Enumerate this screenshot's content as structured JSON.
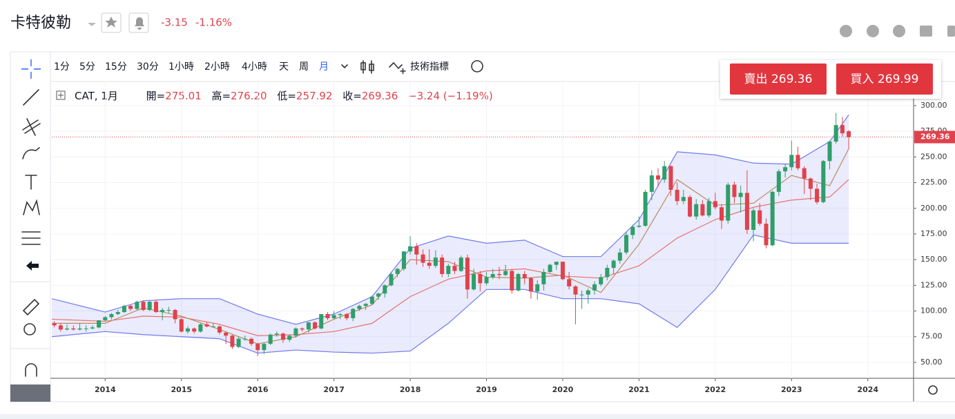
{
  "header": {
    "title": "卡特彼勒",
    "change": "-3.15",
    "change_pct": "-1.16%"
  },
  "toolbar": {
    "intervals": [
      "1分",
      "5分",
      "15分",
      "30分",
      "1小時",
      "2小時",
      "4小時",
      "天",
      "周",
      "月"
    ],
    "indicators": "技術指標"
  },
  "legend": {
    "symbol": "CAT, 1月",
    "open_label": "開=",
    "open": "275.01",
    "high_label": "高=",
    "high": "276.20",
    "low_label": "低=",
    "low": "257.92",
    "close_label": "收=",
    "close": "269.36",
    "change": "−3.24 (−1.19%)"
  },
  "trade": {
    "sell": "賣出 269.36",
    "buy": "買入 269.99"
  },
  "chart_data": {
    "type": "candlestick",
    "up_color": "#2f9e6a",
    "down_color": "#e0424c",
    "xlim": [
      2013.3,
      2024.6
    ],
    "xticks": [
      2014,
      2015,
      2016,
      2017,
      2018,
      2019,
      2020,
      2021,
      2022,
      2023,
      2024
    ],
    "ylim": [
      34.5,
      323.5
    ],
    "yticks": [
      {
        "value": 50,
        "label": "50.00"
      },
      {
        "value": 75,
        "label": "75.00"
      },
      {
        "value": 100,
        "label": "100.00"
      },
      {
        "value": 125,
        "label": "125.00"
      },
      {
        "value": 150,
        "label": "150.00"
      },
      {
        "value": 175,
        "label": "175.00"
      },
      {
        "value": 200,
        "label": "200.00"
      },
      {
        "value": 225,
        "label": "225.00"
      },
      {
        "value": 250,
        "label": "250.00"
      },
      {
        "value": 275,
        "label": "275.00"
      },
      {
        "value": 300,
        "label": "300.00"
      }
    ],
    "grid": true,
    "last_price": {
      "value": 269.36,
      "label": "269.36"
    },
    "x": [
      2013.333,
      2013.417,
      2013.5,
      2013.583,
      2013.667,
      2013.75,
      2013.833,
      2013.917,
      2014,
      2014.083,
      2014.167,
      2014.25,
      2014.333,
      2014.417,
      2014.5,
      2014.583,
      2014.667,
      2014.75,
      2014.833,
      2014.917,
      2015,
      2015.083,
      2015.167,
      2015.25,
      2015.333,
      2015.417,
      2015.5,
      2015.583,
      2015.667,
      2015.75,
      2015.833,
      2015.917,
      2016,
      2016.083,
      2016.167,
      2016.25,
      2016.333,
      2016.417,
      2016.5,
      2016.583,
      2016.667,
      2016.75,
      2016.833,
      2016.917,
      2017,
      2017.083,
      2017.167,
      2017.25,
      2017.333,
      2017.417,
      2017.5,
      2017.583,
      2017.667,
      2017.75,
      2017.833,
      2017.917,
      2018,
      2018.083,
      2018.167,
      2018.25,
      2018.333,
      2018.417,
      2018.5,
      2018.583,
      2018.667,
      2018.75,
      2018.833,
      2018.917,
      2019,
      2019.083,
      2019.167,
      2019.25,
      2019.333,
      2019.417,
      2019.5,
      2019.583,
      2019.667,
      2019.75,
      2019.833,
      2019.917,
      2020,
      2020.083,
      2020.167,
      2020.25,
      2020.333,
      2020.417,
      2020.5,
      2020.583,
      2020.667,
      2020.75,
      2020.833,
      2020.917,
      2021,
      2021.083,
      2021.167,
      2021.25,
      2021.333,
      2021.417,
      2021.5,
      2021.583,
      2021.667,
      2021.75,
      2021.833,
      2021.917,
      2022,
      2022.083,
      2022.167,
      2022.25,
      2022.333,
      2022.417,
      2022.5,
      2022.583,
      2022.667,
      2022.75,
      2022.833,
      2022.917,
      2023,
      2023.083,
      2023.167,
      2023.25,
      2023.333,
      2023.417,
      2023.5,
      2023.583,
      2023.667,
      2023.75
    ],
    "ohlc": [
      [
        88,
        90,
        84,
        86
      ],
      [
        86,
        88,
        80,
        82
      ],
      [
        82,
        87,
        81,
        83
      ],
      [
        83,
        86,
        81,
        82
      ],
      [
        82,
        88,
        81,
        83
      ],
      [
        83,
        86,
        80,
        83
      ],
      [
        83,
        86,
        82,
        84
      ],
      [
        84,
        91,
        83,
        91
      ],
      [
        91,
        95,
        90,
        94
      ],
      [
        94,
        98,
        92,
        97
      ],
      [
        97,
        101,
        96,
        99
      ],
      [
        99,
        106,
        98,
        105
      ],
      [
        105,
        106,
        100,
        102
      ],
      [
        102,
        110,
        101,
        109
      ],
      [
        109,
        110,
        100,
        101
      ],
      [
        101,
        110,
        100,
        109
      ],
      [
        109,
        111,
        98,
        99
      ],
      [
        99,
        103,
        91,
        101
      ],
      [
        101,
        104,
        98,
        101
      ],
      [
        101,
        102,
        88,
        92
      ],
      [
        92,
        93,
        79,
        80
      ],
      [
        80,
        85,
        78,
        83
      ],
      [
        83,
        84,
        78,
        80
      ],
      [
        80,
        88,
        79,
        87
      ],
      [
        87,
        89,
        84,
        85
      ],
      [
        85,
        88,
        84,
        85
      ],
      [
        85,
        86,
        77,
        79
      ],
      [
        79,
        80,
        68,
        76
      ],
      [
        76,
        77,
        63,
        65
      ],
      [
        65,
        75,
        64,
        73
      ],
      [
        73,
        76,
        71,
        73
      ],
      [
        73,
        74,
        66,
        68
      ],
      [
        68,
        69,
        56,
        62
      ],
      [
        62,
        69,
        58,
        68
      ],
      [
        68,
        78,
        67,
        77
      ],
      [
        77,
        80,
        75,
        78
      ],
      [
        78,
        79,
        69,
        72
      ],
      [
        72,
        77,
        70,
        76
      ],
      [
        76,
        84,
        74,
        83
      ],
      [
        83,
        84,
        80,
        82
      ],
      [
        82,
        89,
        79,
        89
      ],
      [
        89,
        90,
        82,
        83
      ],
      [
        83,
        97,
        82,
        97
      ],
      [
        97,
        99,
        91,
        93
      ],
      [
        93,
        100,
        92,
        96
      ],
      [
        96,
        98,
        92,
        97
      ],
      [
        97,
        98,
        91,
        93
      ],
      [
        93,
        103,
        90,
        102
      ],
      [
        102,
        106,
        100,
        105
      ],
      [
        105,
        108,
        101,
        107
      ],
      [
        107,
        115,
        106,
        114
      ],
      [
        114,
        118,
        111,
        117
      ],
      [
        117,
        126,
        113,
        125
      ],
      [
        125,
        138,
        124,
        136
      ],
      [
        136,
        142,
        133,
        141
      ],
      [
        141,
        158,
        139,
        158
      ],
      [
        158,
        173,
        155,
        163
      ],
      [
        163,
        166,
        145,
        155
      ],
      [
        155,
        160,
        143,
        147
      ],
      [
        147,
        160,
        141,
        144
      ],
      [
        144,
        159,
        142,
        152
      ],
      [
        152,
        155,
        133,
        136
      ],
      [
        136,
        146,
        133,
        144
      ],
      [
        144,
        148,
        136,
        139
      ],
      [
        139,
        154,
        138,
        152
      ],
      [
        152,
        155,
        112,
        121
      ],
      [
        121,
        141,
        120,
        136
      ],
      [
        136,
        139,
        119,
        127
      ],
      [
        127,
        138,
        125,
        133
      ],
      [
        133,
        141,
        131,
        136
      ],
      [
        136,
        143,
        131,
        135
      ],
      [
        135,
        145,
        134,
        139
      ],
      [
        139,
        141,
        117,
        120
      ],
      [
        120,
        137,
        119,
        136
      ],
      [
        136,
        139,
        126,
        132
      ],
      [
        132,
        133,
        112,
        119
      ],
      [
        119,
        130,
        111,
        126
      ],
      [
        126,
        141,
        120,
        138
      ],
      [
        138,
        146,
        137,
        145
      ],
      [
        145,
        148,
        140,
        148
      ],
      [
        148,
        148,
        130,
        131
      ],
      [
        131,
        138,
        121,
        124
      ],
      [
        124,
        125,
        87,
        116
      ],
      [
        116,
        120,
        102,
        116
      ],
      [
        116,
        122,
        107,
        120
      ],
      [
        120,
        129,
        116,
        126
      ],
      [
        126,
        136,
        124,
        133
      ],
      [
        133,
        145,
        130,
        142
      ],
      [
        142,
        150,
        136,
        149
      ],
      [
        149,
        161,
        146,
        157
      ],
      [
        157,
        177,
        155,
        174
      ],
      [
        174,
        184,
        170,
        182
      ],
      [
        182,
        192,
        181,
        183
      ],
      [
        183,
        218,
        182,
        216
      ],
      [
        216,
        237,
        208,
        232
      ],
      [
        232,
        239,
        221,
        228
      ],
      [
        228,
        246,
        225,
        241
      ],
      [
        241,
        242,
        212,
        218
      ],
      [
        218,
        225,
        203,
        207
      ],
      [
        207,
        218,
        204,
        211
      ],
      [
        211,
        213,
        191,
        192
      ],
      [
        192,
        209,
        189,
        204
      ],
      [
        204,
        208,
        192,
        193
      ],
      [
        193,
        210,
        191,
        207
      ],
      [
        207,
        215,
        199,
        201
      ],
      [
        201,
        204,
        180,
        188
      ],
      [
        188,
        225,
        185,
        223
      ],
      [
        223,
        226,
        205,
        211
      ],
      [
        211,
        222,
        196,
        215
      ],
      [
        215,
        237,
        175,
        179
      ],
      [
        179,
        200,
        168,
        198
      ],
      [
        198,
        205,
        183,
        185
      ],
      [
        185,
        190,
        161,
        164
      ],
      [
        164,
        217,
        163,
        216
      ],
      [
        216,
        238,
        212,
        236
      ],
      [
        236,
        243,
        230,
        240
      ],
      [
        240,
        266,
        237,
        252
      ],
      [
        252,
        260,
        237,
        239
      ],
      [
        239,
        241,
        214,
        229
      ],
      [
        229,
        230,
        208,
        219
      ],
      [
        219,
        224,
        204,
        206
      ],
      [
        206,
        247,
        205,
        246
      ],
      [
        246,
        266,
        238,
        265
      ],
      [
        265,
        293,
        263,
        281
      ],
      [
        281,
        289,
        270,
        273
      ],
      [
        275.01,
        276.2,
        257.92,
        269.36
      ]
    ],
    "bands": {
      "x": [
        2013.3,
        2014,
        2014.5,
        2015,
        2015.5,
        2016,
        2016.5,
        2017,
        2017.5,
        2018,
        2018.5,
        2019,
        2019.5,
        2020,
        2020.5,
        2021,
        2021.5,
        2022,
        2022.5,
        2023,
        2023.5,
        2023.75
      ],
      "upper": [
        112,
        99,
        110,
        112,
        112,
        97,
        87,
        97,
        114,
        161,
        173,
        166,
        169,
        153,
        153,
        189,
        255,
        252,
        244,
        243,
        265,
        291
      ],
      "lower": [
        75,
        80,
        77,
        75,
        73,
        59,
        62,
        60,
        59,
        61,
        88,
        121,
        121,
        112,
        112,
        107,
        84,
        121,
        174,
        166,
        166,
        166
      ],
      "middle": [
        92,
        90,
        95,
        94,
        87,
        76,
        77,
        80,
        88,
        114,
        131,
        139,
        141,
        134,
        132,
        144,
        171,
        189,
        201,
        208,
        211,
        228
      ],
      "fast": [
        88,
        88,
        103,
        95,
        82,
        68,
        75,
        92,
        106,
        150,
        148,
        133,
        132,
        135,
        118,
        165,
        228,
        203,
        205,
        232,
        222,
        258
      ],
      "band_color": "#6f78ec",
      "middle_color": "#e8706f",
      "fast_color": "#b98a5e"
    }
  }
}
